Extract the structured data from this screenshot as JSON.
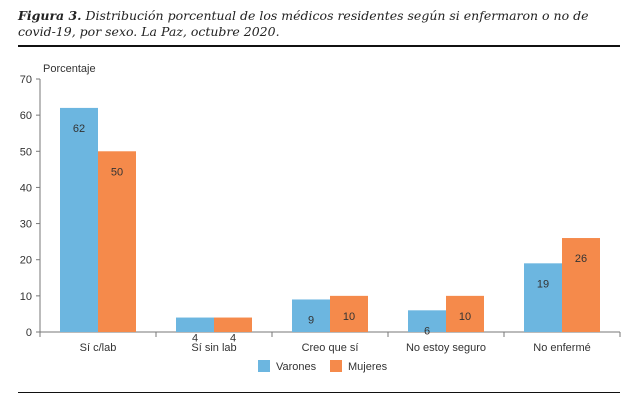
{
  "caption": {
    "figure_label": "Figura 3.",
    "text": "Distribución porcentual de los médicos residentes según si enfermaron o no de covid-19, por sexo. La Paz, octubre 2020."
  },
  "chart_data": {
    "type": "bar",
    "ylabel": "Porcentaje",
    "ylim": [
      0,
      70
    ],
    "yticks": [
      0,
      10,
      20,
      30,
      40,
      50,
      60,
      70
    ],
    "categories": [
      "Sí c/lab",
      "Sí sin lab",
      "Creo que sí",
      "No estoy seguro",
      "No enfermé"
    ],
    "series": [
      {
        "name": "Varones",
        "color": "#6CB6E0",
        "values": [
          62,
          4,
          9,
          6,
          19
        ],
        "labels": [
          "62",
          "4",
          "9",
          "6",
          "19"
        ]
      },
      {
        "name": "Mujeres",
        "color": "#F58A4B",
        "values": [
          50,
          4,
          10,
          10,
          26
        ],
        "labels": [
          "50",
          "4",
          "10",
          "10",
          "26"
        ]
      }
    ],
    "legend_position": "bottom",
    "grid": false
  }
}
